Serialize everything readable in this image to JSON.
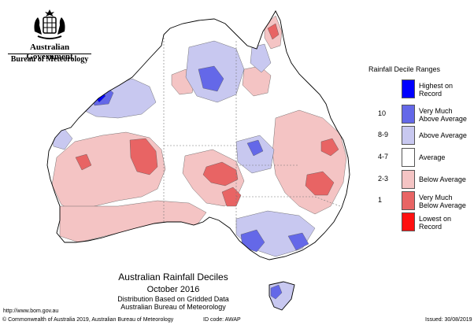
{
  "header": {
    "government": "Australian Government",
    "agency": "Bureau of Meteorology"
  },
  "legend": {
    "title": "Rainfall Decile Ranges",
    "rows": [
      {
        "decile": "",
        "label": "Highest on Record",
        "color": "#0000ff"
      },
      {
        "decile": "10",
        "label": "Very Much Above Average",
        "color": "#6468e8"
      },
      {
        "decile": "8-9",
        "label": "Above Average",
        "color": "#c8c8f0"
      },
      {
        "decile": "4-7",
        "label": "Average",
        "color": "#ffffff"
      },
      {
        "decile": "2-3",
        "label": "Below Average",
        "color": "#f4c4c4"
      },
      {
        "decile": "1",
        "label": "Very Much Below Average",
        "color": "#e86464"
      },
      {
        "decile": "",
        "label": "Lowest on Record",
        "color": "#ff1010"
      }
    ]
  },
  "map": {
    "title": "Australian Rainfall Deciles",
    "period": "October 2016",
    "subtitle1": "Distribution Based on Gridded Data",
    "subtitle2": "Australian Bureau of Meteorology"
  },
  "footer": {
    "url": "http://www.bom.gov.au",
    "copyright": "© Commonwealth of Australia 2019, Australian Bureau of Meteorology",
    "id_code": "ID code: AWAP",
    "issued": "Issued: 30/08/2019"
  },
  "colors": {
    "outline": "#000000",
    "border": "#777777",
    "contour": "#555555"
  }
}
